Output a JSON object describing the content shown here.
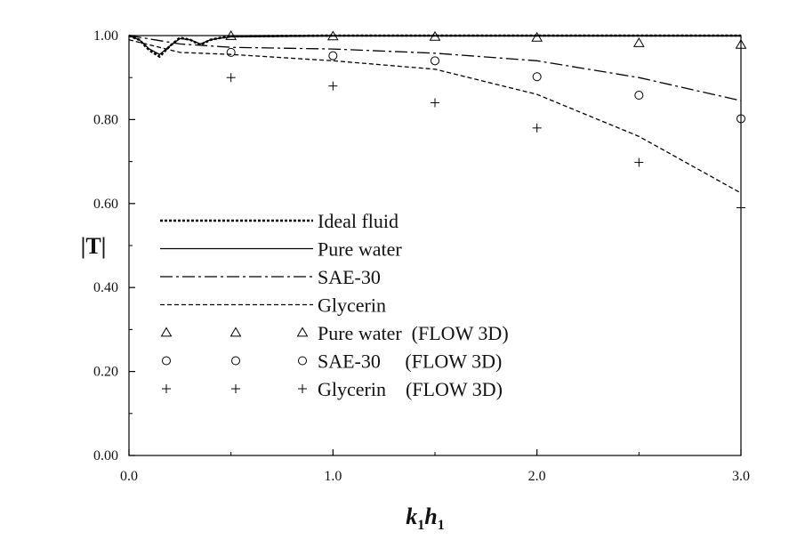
{
  "chart_data": {
    "type": "line",
    "xlabel": "k1h1",
    "xlabel_parts": {
      "k": "k",
      "k_sub": "1",
      "h": "h",
      "h_sub": "1"
    },
    "ylabel": "|T|",
    "xlim": [
      0,
      3
    ],
    "ylim": [
      0,
      1
    ],
    "xticks": [
      0,
      1,
      2,
      3
    ],
    "xtick_labels": [
      "0.0",
      "1.0",
      "2.0",
      "3.0"
    ],
    "yticks": [
      0,
      0.2,
      0.4,
      0.6,
      0.8,
      1.0
    ],
    "ytick_labels": [
      "0.00",
      "0.20",
      "0.40",
      "0.60",
      "0.80",
      "1.00"
    ],
    "grid": false,
    "legend_position": "left",
    "series": [
      {
        "name": "Ideal fluid",
        "style": "dotted-line",
        "x": [
          0,
          0.05,
          0.1,
          0.15,
          0.2,
          0.25,
          0.3,
          0.35,
          0.4,
          0.45,
          0.5,
          1.0,
          1.5,
          2.0,
          2.5,
          3.0
        ],
        "y": [
          1.0,
          0.99,
          0.965,
          0.95,
          0.975,
          0.995,
          0.99,
          0.978,
          0.99,
          0.995,
          0.998,
          1.0,
          1.0,
          1.0,
          1.0,
          1.0
        ]
      },
      {
        "name": "Pure water",
        "style": "solid-line",
        "x": [
          0,
          0.05,
          0.1,
          0.15,
          0.2,
          0.25,
          0.3,
          0.35,
          0.4,
          0.45,
          0.5,
          1.0,
          1.5,
          2.0,
          2.5,
          3.0
        ],
        "y": [
          1.0,
          0.99,
          0.968,
          0.955,
          0.975,
          0.993,
          0.99,
          0.98,
          0.99,
          0.994,
          0.997,
          0.999,
          0.999,
          0.999,
          0.999,
          0.999
        ]
      },
      {
        "name": "SAE-30",
        "style": "dash-dot-line",
        "x": [
          0,
          0.25,
          0.5,
          1.0,
          1.5,
          2.0,
          2.5,
          3.0
        ],
        "y": [
          1.0,
          0.98,
          0.972,
          0.968,
          0.958,
          0.94,
          0.9,
          0.845
        ]
      },
      {
        "name": "Glycerin",
        "style": "dashed-line",
        "x": [
          0,
          0.25,
          0.5,
          1.0,
          1.5,
          2.0,
          2.5,
          3.0
        ],
        "y": [
          0.99,
          0.96,
          0.955,
          0.94,
          0.92,
          0.86,
          0.76,
          0.625
        ]
      },
      {
        "name": "Pure water  (FLOW 3D)",
        "style": "triangle-marker",
        "x": [
          0.5,
          1.0,
          1.5,
          2.0,
          2.5,
          3.0
        ],
        "y": [
          0.999,
          0.998,
          0.997,
          0.995,
          0.982,
          0.978
        ]
      },
      {
        "name": "SAE-30     (FLOW 3D)",
        "style": "circle-marker",
        "x": [
          0.5,
          1.0,
          1.5,
          2.0,
          2.5,
          3.0
        ],
        "y": [
          0.96,
          0.952,
          0.94,
          0.902,
          0.858,
          0.802
        ]
      },
      {
        "name": "Glycerin    (FLOW 3D)",
        "style": "plus-marker",
        "x": [
          0.5,
          1.0,
          1.5,
          2.0,
          2.5,
          3.0
        ],
        "y": [
          0.9,
          0.88,
          0.84,
          0.78,
          0.698,
          0.59
        ]
      }
    ],
    "legend": [
      {
        "label": "Ideal fluid",
        "kind": "line",
        "dash": "3,2",
        "width": 2.6
      },
      {
        "label": "Pure water",
        "kind": "line",
        "dash": "",
        "width": 1.3
      },
      {
        "label": "SAE-30",
        "kind": "line",
        "dash": "14,4,3,4",
        "width": 1.3
      },
      {
        "label": "Glycerin",
        "kind": "line",
        "dash": "5,3",
        "width": 1.3
      },
      {
        "label": "Pure water  (FLOW 3D)",
        "kind": "marker",
        "marker": "triangle"
      },
      {
        "label": "SAE-30     (FLOW 3D)",
        "kind": "marker",
        "marker": "circle"
      },
      {
        "label": "Glycerin    (FLOW 3D)",
        "kind": "marker",
        "marker": "plus"
      }
    ]
  }
}
